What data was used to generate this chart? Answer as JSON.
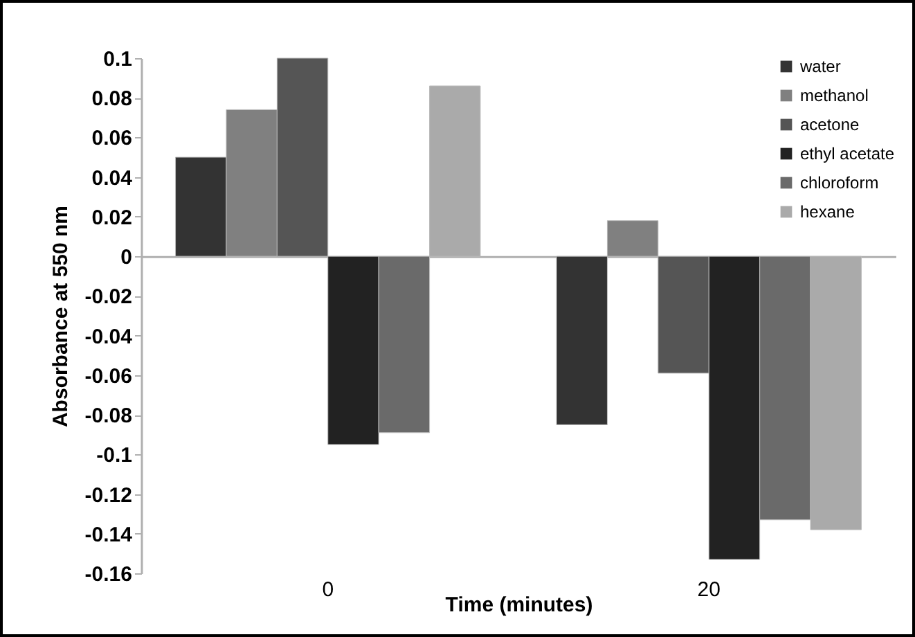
{
  "chart_data": {
    "type": "bar",
    "xlabel": "Time (minutes)",
    "ylabel": "Absorbance at 550 nm",
    "categories": [
      "0",
      "20"
    ],
    "series": [
      {
        "name": "water",
        "color": "#333333",
        "values": [
          0.05,
          -0.085
        ]
      },
      {
        "name": "methanol",
        "color": "#808080",
        "values": [
          0.074,
          0.018
        ]
      },
      {
        "name": "acetone",
        "color": "#555555",
        "values": [
          0.1,
          -0.059
        ]
      },
      {
        "name": "ethyl acetate",
        "color": "#222222",
        "values": [
          -0.095,
          -0.153
        ]
      },
      {
        "name": "chloroform",
        "color": "#6a6a6a",
        "values": [
          -0.089,
          -0.133
        ]
      },
      {
        "name": "hexane",
        "color": "#aaaaaa",
        "values": [
          0.086,
          -0.138
        ]
      }
    ],
    "ylim": [
      -0.16,
      0.1
    ],
    "yticks": [
      -0.16,
      -0.14,
      -0.12,
      -0.1,
      -0.08,
      -0.06,
      -0.04,
      -0.02,
      0,
      0.02,
      0.04,
      0.06,
      0.08,
      0.1
    ],
    "legend": "top right"
  }
}
